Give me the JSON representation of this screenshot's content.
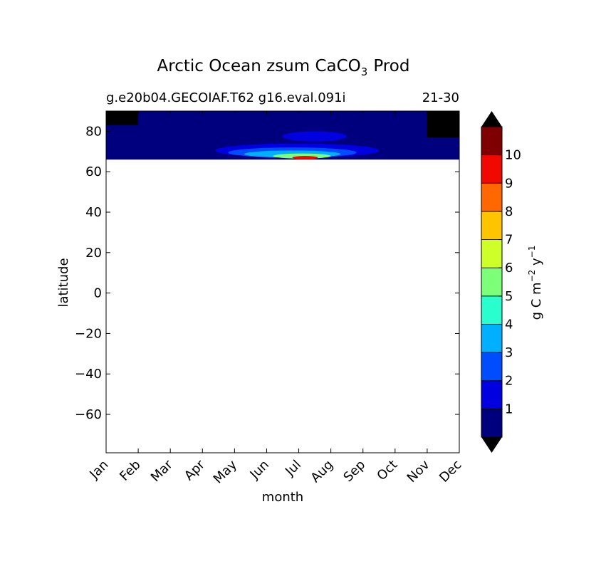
{
  "chart_data": {
    "type": "heatmap",
    "title_main": "Arctic Ocean zsum CaCO",
    "title_sub": "3",
    "title_tail": "Prod",
    "subtitle_left": "g.e20b04.GECOIAF.T62 g16.eval.091i",
    "subtitle_right": "21-30",
    "xlabel": "month",
    "ylabel": "latitude",
    "x_ticks": [
      "Jan",
      "Feb",
      "Mar",
      "Apr",
      "May",
      "Jun",
      "Jul",
      "Aug",
      "Sep",
      "Oct",
      "Nov",
      "Dec"
    ],
    "y_ticks": [
      80,
      60,
      40,
      20,
      0,
      -20,
      -40,
      -60
    ],
    "y_tick_labels": [
      "80",
      "60",
      "40",
      "20",
      "0",
      "−20",
      "−40",
      "−60"
    ],
    "ylim": [
      -79,
      90
    ],
    "data_lat_range": [
      66,
      90
    ],
    "colorbar": {
      "label_main": "g C m",
      "label_exp1": "−2",
      "label_mid": " y",
      "label_exp2": "−1",
      "levels": [
        0,
        1,
        2,
        3,
        4,
        5,
        6,
        7,
        8,
        9,
        10,
        11
      ],
      "tick_labels": [
        "1",
        "2",
        "3",
        "4",
        "5",
        "6",
        "7",
        "8",
        "9",
        "10"
      ],
      "colors": [
        "#00007f",
        "#0000e0",
        "#004cff",
        "#00b0ff",
        "#29ffce",
        "#7dff7a",
        "#ceff29",
        "#ffc400",
        "#ff6800",
        "#f10800",
        "#7f0000"
      ],
      "extend_color": "#000000"
    },
    "features": [
      {
        "name": "background",
        "value": 0.5,
        "lat": [
          66,
          90
        ],
        "month": [
          0,
          11
        ]
      },
      {
        "name": "upper-band",
        "value": 1.5,
        "lat": [
          75,
          80
        ],
        "month": [
          5.5,
          7.5
        ]
      },
      {
        "name": "main-blob",
        "value": 1.5,
        "lat": [
          67,
          74
        ],
        "month": [
          3.4,
          8.5
        ]
      },
      {
        "name": "inner-blob",
        "value": 2.5,
        "lat": [
          67,
          72
        ],
        "month": [
          3.8,
          7.8
        ]
      },
      {
        "name": "core",
        "value": 3.5,
        "lat": [
          67,
          70.5
        ],
        "month": [
          4.3,
          7.3
        ]
      },
      {
        "name": "core-high",
        "value": 5.5,
        "lat": [
          66.5,
          69
        ],
        "month": [
          5.2,
          7.0
        ]
      },
      {
        "name": "peak",
        "value": 9.5,
        "lat": [
          66.2,
          67.8
        ],
        "month": [
          5.8,
          6.6
        ]
      },
      {
        "name": "no-data-winter",
        "value": -1,
        "lat": [
          83,
          90
        ],
        "month": [
          0,
          1
        ]
      },
      {
        "name": "no-data-late",
        "value": -1,
        "lat": [
          77,
          90
        ],
        "month": [
          10,
          11
        ]
      }
    ]
  }
}
